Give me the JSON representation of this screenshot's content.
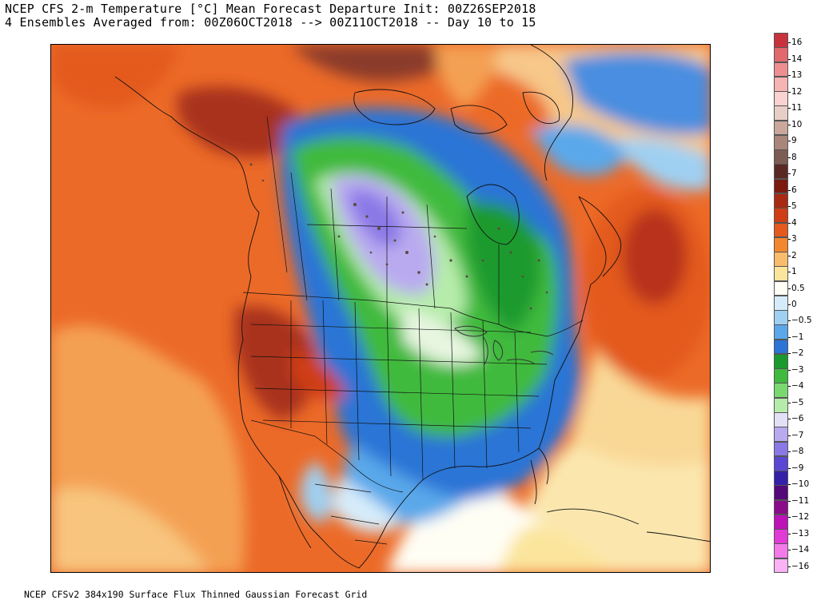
{
  "title": {
    "line1": "NCEP CFS 2-m Temperature [°C] Mean Forecast Departure Init: 00Z26SEP2018",
    "line2": "4 Ensembles Averaged from: 00Z06OCT2018 --> 00Z11OCT2018 -- Day 10 to 15"
  },
  "footer": "NCEP CFSv2 384x190 Surface Flux Thinned Gaussian Forecast Grid",
  "colorbar": {
    "labels": [
      "16",
      "14",
      "13",
      "12",
      "11",
      "10",
      "9",
      "8",
      "7",
      "6",
      "5",
      "4",
      "3",
      "2",
      "1",
      "0.5",
      "0",
      "−0.5",
      "−1",
      "−2",
      "−3",
      "−4",
      "−5",
      "−6",
      "−7",
      "−8",
      "−9",
      "−10",
      "−11",
      "−12",
      "−13",
      "−14",
      "−16"
    ],
    "colors": [
      "#c8323c",
      "#e2686e",
      "#ee8e90",
      "#f6b4b2",
      "#fad2cf",
      "#e7cfc6",
      "#c9a79b",
      "#a9857a",
      "#7d5c53",
      "#5a2a22",
      "#7c1a10",
      "#a82a12",
      "#cf3e14",
      "#e35a1c",
      "#f2872e",
      "#f9bb6c",
      "#fbe59c",
      "#fffef5",
      "#d6ecfa",
      "#9fd0f2",
      "#5aa8ea",
      "#2c74d6",
      "#1a9a2e",
      "#3fba3e",
      "#7ad870",
      "#b6ecaa",
      "#e2e0f6",
      "#b9aaf0",
      "#8a78e6",
      "#5a48d4",
      "#3420a8",
      "#54087a",
      "#8a0c8a",
      "#bc12b8",
      "#e23ad6",
      "#f37ae8",
      "#fbb2f4"
    ]
  }
}
